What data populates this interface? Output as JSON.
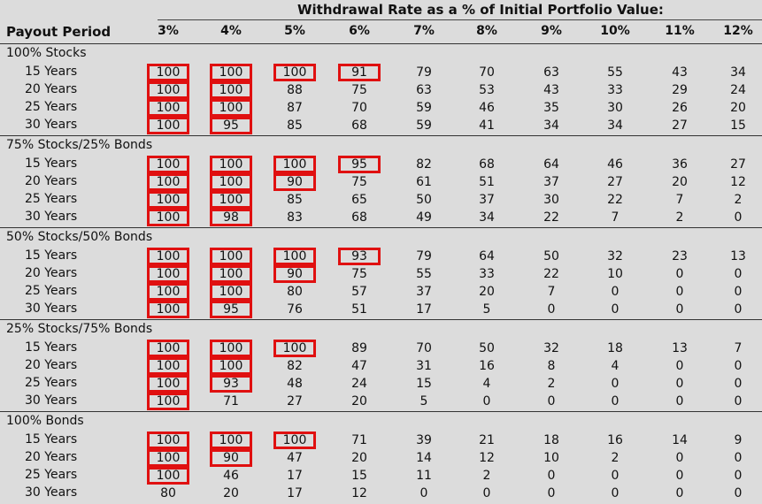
{
  "header": {
    "title": "Withdrawal Rate as a % of Initial Portfolio Value:",
    "payout_label": "Payout Period"
  },
  "columns": [
    "3%",
    "4%",
    "5%",
    "6%",
    "7%",
    "8%",
    "9%",
    "10%",
    "11%",
    "12%"
  ],
  "highlight_color": "#e01010",
  "sections": [
    {
      "label": "100% Stocks",
      "rows": [
        {
          "label": "15 Years",
          "values": [
            100,
            100,
            100,
            91,
            79,
            70,
            63,
            55,
            43,
            34
          ],
          "highlighted": [
            true,
            true,
            true,
            true,
            false,
            false,
            false,
            false,
            false,
            false
          ]
        },
        {
          "label": "20 Years",
          "values": [
            100,
            100,
            88,
            75,
            63,
            53,
            43,
            33,
            29,
            24
          ],
          "highlighted": [
            true,
            true,
            false,
            false,
            false,
            false,
            false,
            false,
            false,
            false
          ]
        },
        {
          "label": "25 Years",
          "values": [
            100,
            100,
            87,
            70,
            59,
            46,
            35,
            30,
            26,
            20
          ],
          "highlighted": [
            true,
            true,
            false,
            false,
            false,
            false,
            false,
            false,
            false,
            false
          ]
        },
        {
          "label": "30 Years",
          "values": [
            100,
            95,
            85,
            68,
            59,
            41,
            34,
            34,
            27,
            15
          ],
          "highlighted": [
            true,
            true,
            false,
            false,
            false,
            false,
            false,
            false,
            false,
            false
          ]
        }
      ]
    },
    {
      "label": "75% Stocks/25% Bonds",
      "rows": [
        {
          "label": "15 Years",
          "values": [
            100,
            100,
            100,
            95,
            82,
            68,
            64,
            46,
            36,
            27
          ],
          "highlighted": [
            true,
            true,
            true,
            true,
            false,
            false,
            false,
            false,
            false,
            false
          ]
        },
        {
          "label": "20 Years",
          "values": [
            100,
            100,
            90,
            75,
            61,
            51,
            37,
            27,
            20,
            12
          ],
          "highlighted": [
            true,
            true,
            true,
            false,
            false,
            false,
            false,
            false,
            false,
            false
          ]
        },
        {
          "label": "25 Years",
          "values": [
            100,
            100,
            85,
            65,
            50,
            37,
            30,
            22,
            7,
            2
          ],
          "highlighted": [
            true,
            true,
            false,
            false,
            false,
            false,
            false,
            false,
            false,
            false
          ]
        },
        {
          "label": "30 Years",
          "values": [
            100,
            98,
            83,
            68,
            49,
            34,
            22,
            7,
            2,
            0
          ],
          "highlighted": [
            true,
            true,
            false,
            false,
            false,
            false,
            false,
            false,
            false,
            false
          ]
        }
      ]
    },
    {
      "label": "50% Stocks/50% Bonds",
      "rows": [
        {
          "label": "15 Years",
          "values": [
            100,
            100,
            100,
            93,
            79,
            64,
            50,
            32,
            23,
            13
          ],
          "highlighted": [
            true,
            true,
            true,
            true,
            false,
            false,
            false,
            false,
            false,
            false
          ]
        },
        {
          "label": "20 Years",
          "values": [
            100,
            100,
            90,
            75,
            55,
            33,
            22,
            10,
            0,
            0
          ],
          "highlighted": [
            true,
            true,
            true,
            false,
            false,
            false,
            false,
            false,
            false,
            false
          ]
        },
        {
          "label": "25 Years",
          "values": [
            100,
            100,
            80,
            57,
            37,
            20,
            7,
            0,
            0,
            0
          ],
          "highlighted": [
            true,
            true,
            false,
            false,
            false,
            false,
            false,
            false,
            false,
            false
          ]
        },
        {
          "label": "30 Years",
          "values": [
            100,
            95,
            76,
            51,
            17,
            5,
            0,
            0,
            0,
            0
          ],
          "highlighted": [
            true,
            true,
            false,
            false,
            false,
            false,
            false,
            false,
            false,
            false
          ]
        }
      ]
    },
    {
      "label": "25% Stocks/75% Bonds",
      "rows": [
        {
          "label": "15 Years",
          "values": [
            100,
            100,
            100,
            89,
            70,
            50,
            32,
            18,
            13,
            7
          ],
          "highlighted": [
            true,
            true,
            true,
            false,
            false,
            false,
            false,
            false,
            false,
            false
          ]
        },
        {
          "label": "20 Years",
          "values": [
            100,
            100,
            82,
            47,
            31,
            16,
            8,
            4,
            0,
            0
          ],
          "highlighted": [
            true,
            true,
            false,
            false,
            false,
            false,
            false,
            false,
            false,
            false
          ]
        },
        {
          "label": "25 Years",
          "values": [
            100,
            93,
            48,
            24,
            15,
            4,
            2,
            0,
            0,
            0
          ],
          "highlighted": [
            true,
            true,
            false,
            false,
            false,
            false,
            false,
            false,
            false,
            false
          ]
        },
        {
          "label": "30 Years",
          "values": [
            100,
            71,
            27,
            20,
            5,
            0,
            0,
            0,
            0,
            0
          ],
          "highlighted": [
            true,
            false,
            false,
            false,
            false,
            false,
            false,
            false,
            false,
            false
          ]
        }
      ]
    },
    {
      "label": "100% Bonds",
      "rows": [
        {
          "label": "15 Years",
          "values": [
            100,
            100,
            100,
            71,
            39,
            21,
            18,
            16,
            14,
            9
          ],
          "highlighted": [
            true,
            true,
            true,
            false,
            false,
            false,
            false,
            false,
            false,
            false
          ]
        },
        {
          "label": "20 Years",
          "values": [
            100,
            90,
            47,
            20,
            14,
            12,
            10,
            2,
            0,
            0
          ],
          "highlighted": [
            true,
            true,
            false,
            false,
            false,
            false,
            false,
            false,
            false,
            false
          ]
        },
        {
          "label": "25 Years",
          "values": [
            100,
            46,
            17,
            15,
            11,
            2,
            0,
            0,
            0,
            0
          ],
          "highlighted": [
            true,
            false,
            false,
            false,
            false,
            false,
            false,
            false,
            false,
            false
          ]
        },
        {
          "label": "30 Years",
          "values": [
            80,
            20,
            17,
            12,
            0,
            0,
            0,
            0,
            0,
            0
          ],
          "highlighted": [
            false,
            false,
            false,
            false,
            false,
            false,
            false,
            false,
            false,
            false
          ]
        }
      ]
    }
  ]
}
